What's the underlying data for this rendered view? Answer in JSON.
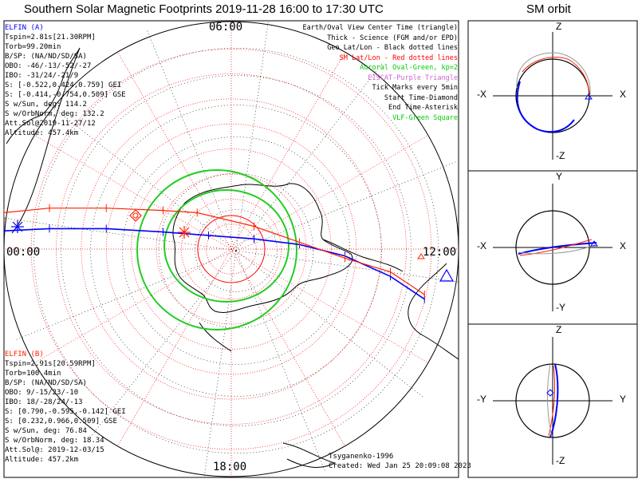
{
  "title": "Southern Solar Magnetic Footprints 2019-11-28 16:00 to 17:30 UTC",
  "sm_title": "SM orbit",
  "clock_labels": {
    "top": "06:00",
    "left": "00:00",
    "right": "12:00",
    "bottom": "18:00"
  },
  "elfin_a": {
    "header": "ELFIN (A)",
    "color": "#0000ff",
    "lines": [
      "Tspin=2.81s[21.30RPM]",
      "Torb=99.20min",
      "B/SP: (NA/ND/SD/SA)",
      "OBO: -46/-13/-52/-27",
      "IBO: -31/24/-21/9",
      "S: [-0.522,0.424,0.759] GEI",
      "S: [-0.414,-0.754,0.509] GSE",
      "S w/Sun, deg: 114.2",
      "S w/OrbNorm, deg: 132.2",
      "Att.Sol@2019-11-27/12",
      "Altitude: 457.4km"
    ]
  },
  "elfin_b": {
    "header": "ELFIN (B)",
    "color": "#ff2200",
    "lines": [
      "Tspin=2.91s[20.59RPM]",
      "Torb=100.4min",
      "B/SP: (NA/ND/SD/SA)",
      "OBO: 9/-15/23/-10",
      "IBO: 18/-28/24/-13",
      "S: [0.790,-0.595,-0.142] GEI",
      "S: [0.232,0.966,0.509] GSE",
      "S w/Sun, deg: 76.84",
      "S w/OrbNorm, deg: 18.34",
      "Att.Sol@: 2019-12-03/15",
      "Altitude: 457.2km"
    ]
  },
  "legend": [
    {
      "text": "Earth/Oval View Center Time (triangle)",
      "color": "#000000"
    },
    {
      "text": "Thick - Science (FGM and/or EPD)",
      "color": "#000000"
    },
    {
      "text": "Geo Lat/Lon - Black dotted lines",
      "color": "#000000"
    },
    {
      "text": "SM Lat/Lon - Red dotted lines",
      "color": "#ff0000"
    },
    {
      "text": "Auroral Oval-Green, kp=2",
      "color": "#00cc00"
    },
    {
      "text": "EISCAT-Purple Triangle",
      "color": "#cc66cc"
    },
    {
      "text": "Tick Marks every 5min",
      "color": "#000000"
    },
    {
      "text": "Start Time-Diamond",
      "color": "#000000"
    },
    {
      "text": "End Time-Asterisk",
      "color": "#000000"
    },
    {
      "text": "VLF-Green Square",
      "color": "#00cc00"
    }
  ],
  "footer": {
    "model": "Tsyganenko-1996",
    "created": "Created: Wed Jan 25 20:09:08 2023"
  },
  "sm_panels": [
    {
      "top": "Z",
      "bottom": "-Z",
      "left": "-X",
      "right": "X"
    },
    {
      "top": "Y",
      "bottom": "-Y",
      "left": "-X",
      "right": "X"
    },
    {
      "top": "Z",
      "bottom": "-Z",
      "left": "-Y",
      "right": "Y"
    }
  ],
  "chart_data": {
    "type": "scatter",
    "projection": "south polar stereographic (SM), local time around edge",
    "series": [
      {
        "name": "ELFIN (A)",
        "color": "#0000ff",
        "points": [
          [
            -1.0,
            0.08
          ],
          [
            -0.8,
            0.09
          ],
          [
            -0.55,
            0.09
          ],
          [
            -0.3,
            0.075
          ],
          [
            -0.1,
            0.06
          ],
          [
            0.1,
            0.045
          ],
          [
            0.3,
            0.02
          ],
          [
            0.5,
            -0.03
          ],
          [
            0.7,
            -0.12
          ],
          [
            0.85,
            -0.22
          ]
        ]
      },
      {
        "name": "ELFIN (B)",
        "color": "#ff2200",
        "points": [
          [
            -1.0,
            0.16
          ],
          [
            -0.8,
            0.18
          ],
          [
            -0.55,
            0.18
          ],
          [
            -0.3,
            0.17
          ],
          [
            -0.15,
            0.16
          ],
          [
            0.1,
            0.1
          ],
          [
            0.3,
            0.03
          ],
          [
            0.5,
            -0.04
          ],
          [
            0.7,
            -0.1
          ],
          [
            0.85,
            -0.2
          ]
        ]
      }
    ],
    "auroral_oval_color": "#00cc00",
    "sm_grid_color": "#ff0000",
    "geo_grid_color": "#000000"
  }
}
